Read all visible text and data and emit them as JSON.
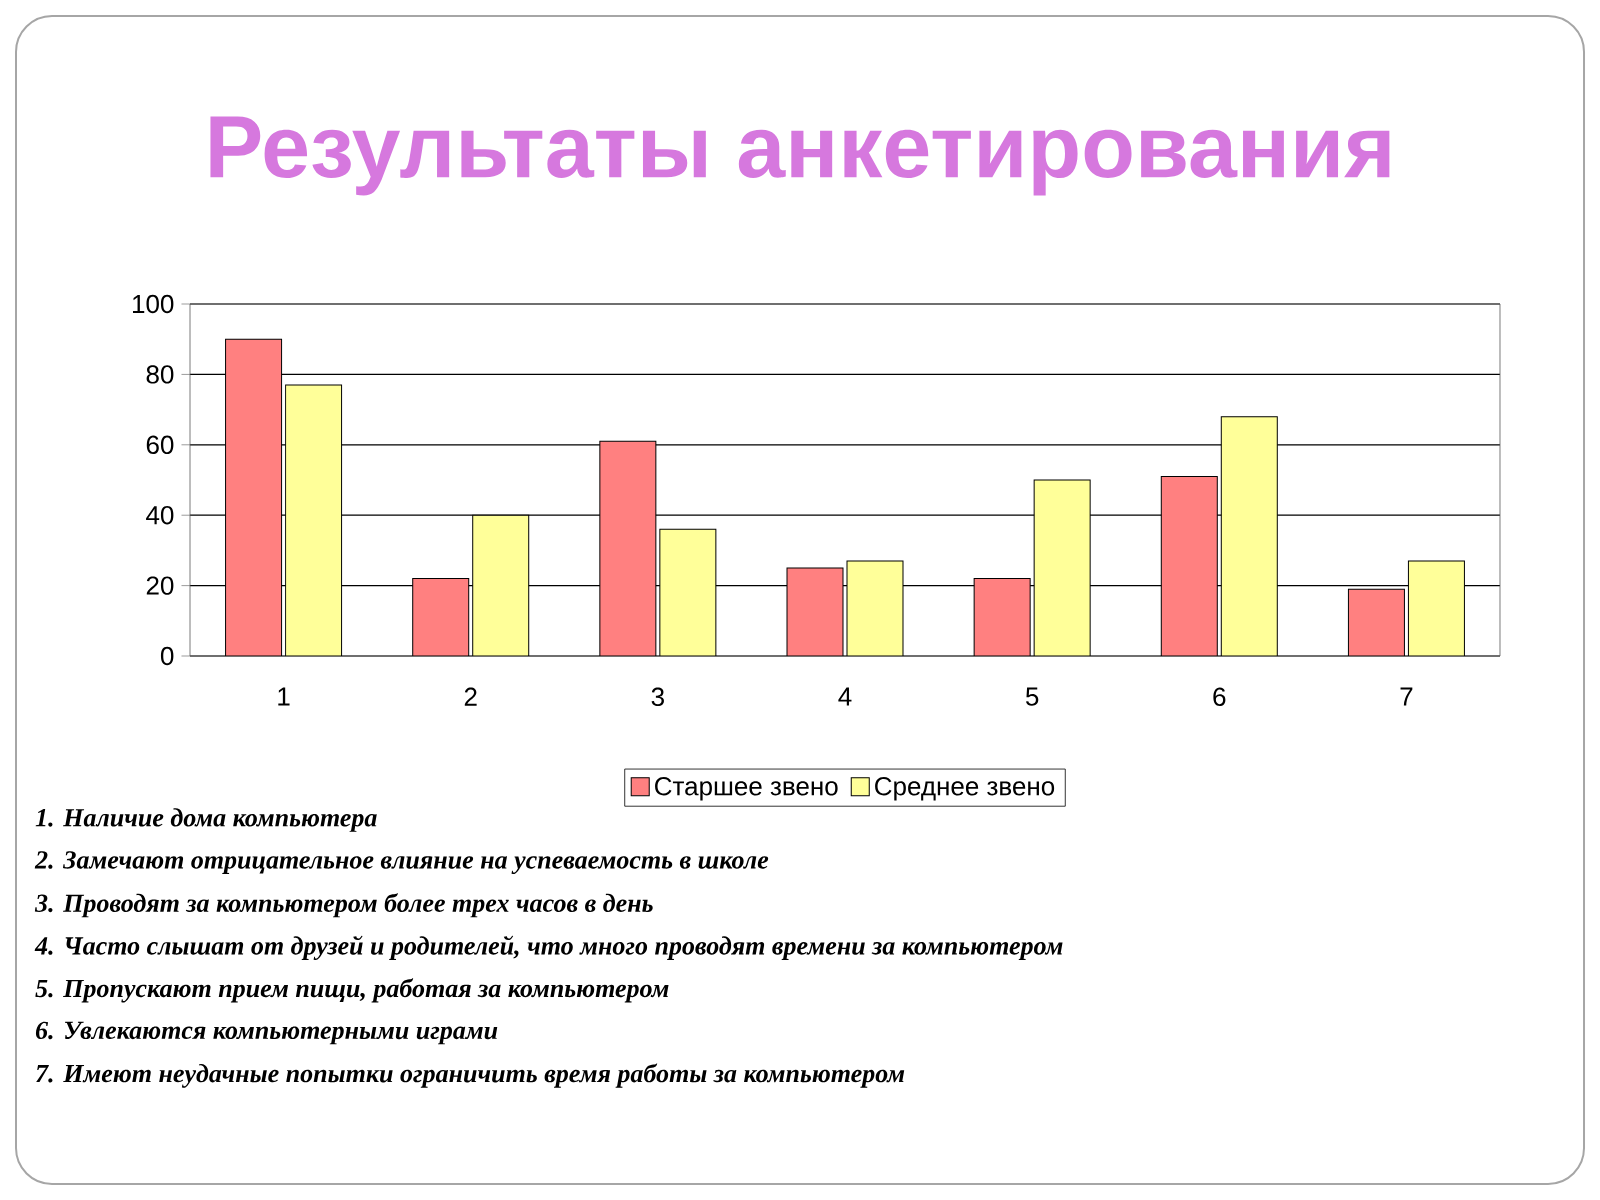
{
  "chart_data": {
    "type": "bar",
    "title": "Результаты анкетирования",
    "categories": [
      "1",
      "2",
      "3",
      "4",
      "5",
      "6",
      "7"
    ],
    "series": [
      {
        "name": "Старшее звено",
        "color": "#ff8080",
        "values": [
          90,
          22,
          61,
          25,
          22,
          51,
          19
        ]
      },
      {
        "name": "Среднее звено",
        "color": "#ffff99",
        "values": [
          77,
          40,
          36,
          27,
          50,
          68,
          27
        ]
      }
    ],
    "ylim": [
      0,
      100
    ],
    "yticks": [
      0,
      20,
      40,
      60,
      80,
      100
    ],
    "grid": "y",
    "legend": "bottom",
    "annotations": [
      "1. Наличие дома компьютера",
      "2. Замечают отрицательное влияние на успеваемость в школе",
      "3. Проводят за компьютером более трех часов в день",
      "4. Часто слышат от друзей и родителей, что много проводят времени за компьютером",
      "5. Пропускают прием пищи, работая за компьютером",
      "6. Увлекаются компьютерными играми",
      "7. Имеют неудачные попытки ограничить время работы за компьютером"
    ]
  }
}
